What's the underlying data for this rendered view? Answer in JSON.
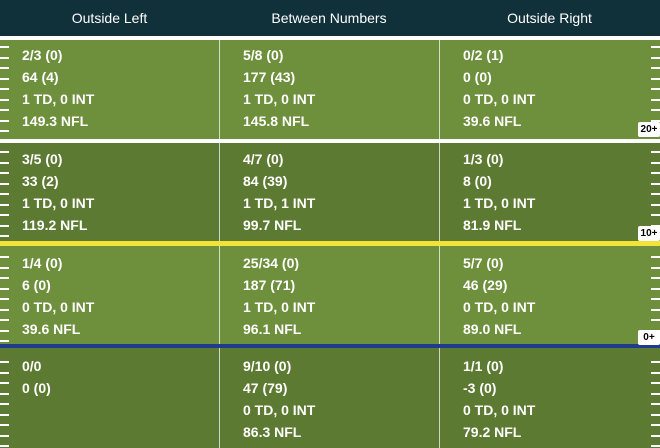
{
  "columns": [
    "Outside Left",
    "Between Numbers",
    "Outside Right"
  ],
  "zones": [
    {
      "id": "deep",
      "label": "",
      "color": "#6e8f3c",
      "cells": [
        [
          "2/3 (0)",
          "64 (4)",
          "1 TD, 0 INT",
          "149.3 NFL"
        ],
        [
          "5/8 (0)",
          "177 (43)",
          "1 TD, 0 INT",
          "145.8 NFL"
        ],
        [
          "0/2 (1)",
          "0 (0)",
          "0 TD, 0 INT",
          "39.6 NFL"
        ]
      ]
    },
    {
      "id": "intermediate",
      "label": "20+",
      "color": "#5d7a32",
      "cells": [
        [
          "3/5 (0)",
          "33 (2)",
          "1 TD, 0 INT",
          "119.2 NFL"
        ],
        [
          "4/7 (0)",
          "84 (39)",
          "1 TD, 1 INT",
          "99.7 NFL"
        ],
        [
          "1/3 (0)",
          "8 (0)",
          "1 TD, 0 INT",
          "81.9 NFL"
        ]
      ]
    },
    {
      "id": "short",
      "label": "10+",
      "color": "#6e8f3c",
      "cells": [
        [
          "1/4 (0)",
          "6 (0)",
          "0 TD, 0 INT",
          "39.6 NFL"
        ],
        [
          "25/34 (0)",
          "187 (71)",
          "1 TD, 0 INT",
          "96.1 NFL"
        ],
        [
          "5/7 (0)",
          "46 (29)",
          "0 TD, 0 INT",
          "89.0 NFL"
        ]
      ]
    },
    {
      "id": "behind",
      "label": "0+",
      "color": "#5d7a32",
      "cells": [
        [
          "0/0",
          "0 (0)"
        ],
        [
          "9/10 (0)",
          "47 (79)",
          "0 TD, 0 INT",
          "86.3 NFL"
        ],
        [
          "1/1 (0)",
          "-3 (0)",
          "0 TD, 0 INT",
          "79.2 NFL"
        ]
      ]
    }
  ],
  "colors": {
    "header_bg": "#10303a",
    "field_light": "#6e8f3c",
    "field_dark": "#5d7a32",
    "line_white": "#ffffff",
    "line_yellow": "#f2e33a",
    "line_blue": "#1f3c8c"
  }
}
